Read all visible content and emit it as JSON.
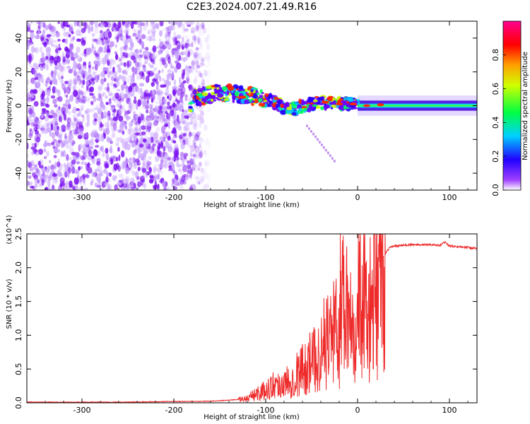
{
  "title": "C2E3.2024.007.21.49.R16",
  "colors": {
    "snr_line": "#ee2a2a",
    "spectrogram_noise": "#8a2be2",
    "colormap": [
      "#ffffff",
      "#7a00ff",
      "#0000ff",
      "#00ffff",
      "#00ff00",
      "#ffff00",
      "#ff8000",
      "#ff0000",
      "#ff0090"
    ]
  },
  "chart_data": [
    {
      "type": "heatmap",
      "title": "",
      "xlabel": "Height of straight line (km)",
      "ylabel": "Frequency (Hz)",
      "xlim": [
        -360,
        130
      ],
      "ylim": [
        -50,
        50
      ],
      "xticks": [
        "-300",
        "-200",
        "-100",
        "0",
        "100"
      ],
      "yticks": [
        "-40",
        "-20",
        "0",
        "20",
        "40"
      ],
      "colorbar": {
        "label": "Normalized spectral amplitude",
        "range": [
          0,
          1
        ],
        "ticks": [
          "0.0",
          "0.2",
          "0.4",
          "0.6",
          "0.8"
        ]
      },
      "description_series": [
        {
          "name": "noise region",
          "x_range": [
            -360,
            -165
          ],
          "y_range": [
            -50,
            50
          ]
        },
        {
          "name": "signal ridge",
          "x": [
            -180,
            -150,
            -130,
            -110,
            -90,
            -75,
            -60,
            -40,
            -20,
            0,
            20,
            60,
            100,
            130
          ],
          "y": [
            4,
            8,
            7,
            5,
            2,
            -3,
            0,
            2,
            1,
            1,
            0,
            0,
            0,
            0
          ]
        }
      ]
    },
    {
      "type": "line",
      "title": "",
      "xlabel": "Height of straight line (km)",
      "ylabel": "SNR (10 * v/v)",
      "multiplier": "(x10^4)",
      "xlim": [
        -360,
        130
      ],
      "ylim": [
        0,
        2.5
      ],
      "xticks": [
        "-300",
        "-200",
        "-100",
        "0",
        "100"
      ],
      "yticks": [
        "0.0",
        "0.5",
        "1.0",
        "1.5",
        "2.0",
        "2.5"
      ],
      "series": [
        {
          "x": [
            -360,
            -300,
            -250,
            -200,
            -170,
            -150,
            -130,
            -120,
            -110,
            -100,
            -90,
            -80,
            -70,
            -60,
            -50,
            -40,
            -35,
            -30,
            -25,
            -20,
            -18,
            -15,
            -12,
            -10,
            -5,
            0,
            5,
            10,
            15,
            20,
            25,
            30,
            35,
            40,
            50,
            60,
            80,
            90,
            95,
            100,
            110,
            120,
            130
          ],
          "y": [
            0.01,
            0.01,
            0.01,
            0.02,
            0.02,
            0.03,
            0.05,
            0.07,
            0.15,
            0.2,
            0.3,
            0.3,
            0.4,
            0.55,
            0.65,
            0.8,
            1.0,
            1.1,
            1.2,
            0.9,
            2.5,
            1.5,
            1.8,
            1.4,
            1.5,
            1.6,
            1.7,
            1.4,
            1.5,
            1.7,
            2.0,
            2.2,
            2.3,
            2.32,
            2.33,
            2.34,
            2.34,
            2.33,
            2.38,
            2.32,
            2.31,
            2.3,
            2.28
          ]
        }
      ]
    }
  ]
}
